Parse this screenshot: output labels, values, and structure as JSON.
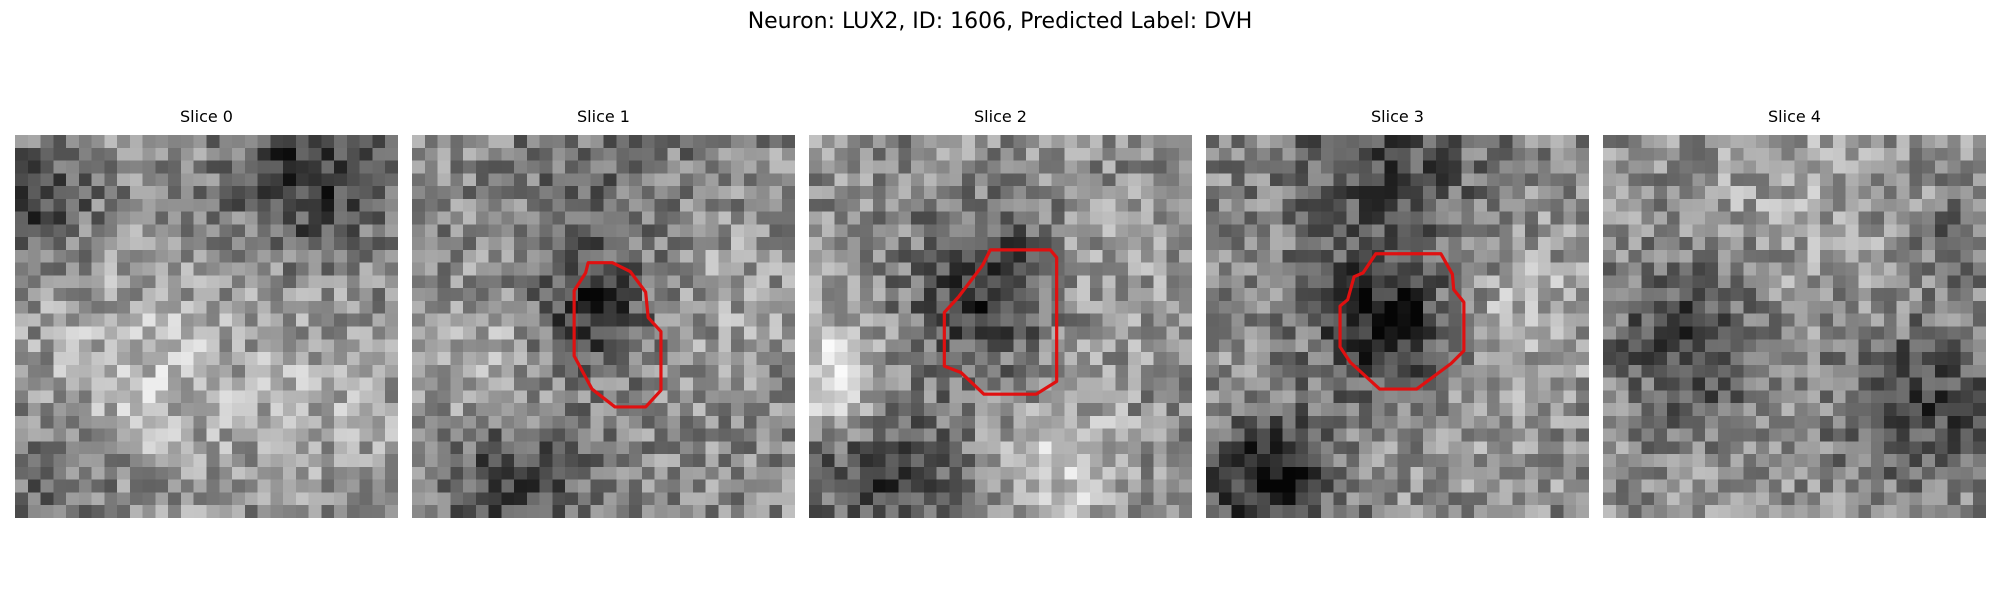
{
  "figure": {
    "title": "Neuron: LUX2, ID: 1606, Predicted Label: DVH",
    "colormap": "gray",
    "outline_color": "#e01010",
    "slices": [
      {
        "label": "Slice 0",
        "has_outline": false
      },
      {
        "label": "Slice 1",
        "has_outline": true
      },
      {
        "label": "Slice 2",
        "has_outline": true
      },
      {
        "label": "Slice 3",
        "has_outline": true
      },
      {
        "label": "Slice 4",
        "has_outline": false
      }
    ]
  }
}
